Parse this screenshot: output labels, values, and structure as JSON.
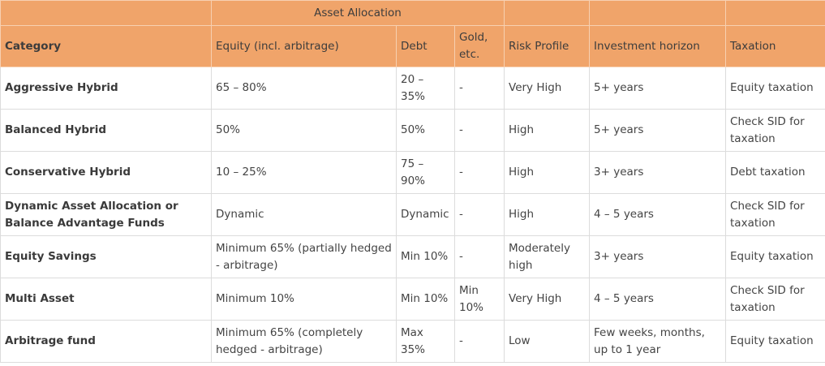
{
  "table": {
    "group_header": "Asset Allocation",
    "columns": [
      "Category",
      "Equity (incl. arbitrage)",
      "Debt",
      "Gold, etc.",
      "Risk Profile",
      "Investment horizon",
      "Taxation"
    ],
    "rows": [
      [
        "Aggressive Hybrid",
        "65 – 80%",
        "20 – 35%",
        "-",
        "Very High",
        "5+ years",
        "Equity taxation"
      ],
      [
        "Balanced Hybrid",
        "50%",
        "50%",
        "-",
        "High",
        "5+ years",
        "Check SID for taxation"
      ],
      [
        "Conservative Hybrid",
        "10 – 25%",
        "75 – 90%",
        "-",
        "High",
        "3+ years",
        "Debt taxation"
      ],
      [
        "Dynamic Asset Allocation or Balance Advantage Funds",
        "Dynamic",
        "Dynamic",
        "-",
        "High",
        "4 – 5 years",
        "Check SID for taxation"
      ],
      [
        "Equity Savings",
        "Minimum 65% (partially hedged - arbitrage)",
        "Min 10%",
        "-",
        "Moderately high",
        "3+ years",
        "Equity taxation"
      ],
      [
        "Multi Asset",
        "Minimum 10%",
        "Min 10%",
        "Min 10%",
        "Very High",
        "4 – 5 years",
        "Check SID for taxation"
      ],
      [
        "Arbitrage fund",
        "Minimum 65% (completely hedged - arbitrage)",
        "Max 35%",
        "-",
        "Low",
        "Few weeks, months, up to 1 year",
        "Equity taxation"
      ]
    ]
  }
}
